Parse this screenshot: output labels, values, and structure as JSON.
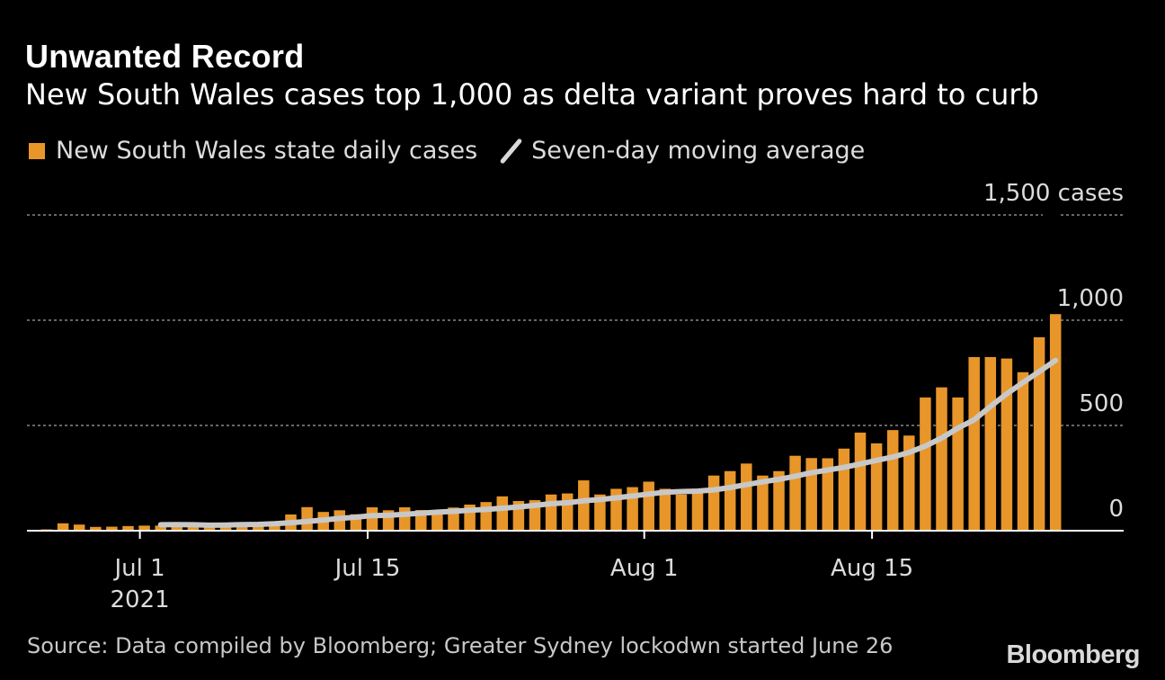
{
  "title": "Unwanted Record",
  "subtitle": "New South Wales cases top 1,000 as delta variant proves hard to curb",
  "legend": {
    "bars_label": "New South Wales state daily cases",
    "line_label": "Seven-day moving average"
  },
  "source": "Source: Data compiled by Bloomberg; Greater Sydney lockodwn started June 26",
  "brand": "Bloomberg",
  "colors": {
    "bar": "#e8962a",
    "line": "#c8c8c8",
    "background": "#000000",
    "grid": "#888888"
  },
  "chart_data": {
    "type": "bar",
    "ylim": [
      0,
      1500
    ],
    "y_ticks": [
      {
        "value": 0,
        "label": "0"
      },
      {
        "value": 500,
        "label": "500"
      },
      {
        "value": 1000,
        "label": "1,000"
      },
      {
        "value": 1500,
        "label": "1,500 cases"
      }
    ],
    "x_ticks": [
      {
        "index": 6,
        "label": "Jul 1",
        "sublabel": "2021"
      },
      {
        "index": 20,
        "label": "Jul 15"
      },
      {
        "index": 37,
        "label": "Aug 1"
      },
      {
        "index": 51,
        "label": "Aug 15"
      }
    ],
    "dates": [
      "Jun 25",
      "Jun 26",
      "Jun 27",
      "Jun 28",
      "Jun 29",
      "Jun 30",
      "Jul 1",
      "Jul 2",
      "Jul 3",
      "Jul 4",
      "Jul 5",
      "Jul 6",
      "Jul 7",
      "Jul 8",
      "Jul 9",
      "Jul 10",
      "Jul 11",
      "Jul 12",
      "Jul 13",
      "Jul 14",
      "Jul 15",
      "Jul 16",
      "Jul 17",
      "Jul 18",
      "Jul 19",
      "Jul 20",
      "Jul 21",
      "Jul 22",
      "Jul 23",
      "Jul 24",
      "Jul 25",
      "Jul 26",
      "Jul 27",
      "Jul 28",
      "Jul 29",
      "Jul 30",
      "Jul 31",
      "Aug 1",
      "Aug 2",
      "Aug 3",
      "Aug 4",
      "Aug 5",
      "Aug 6",
      "Aug 7",
      "Aug 8",
      "Aug 9",
      "Aug 10",
      "Aug 11",
      "Aug 12",
      "Aug 13",
      "Aug 14",
      "Aug 15",
      "Aug 16",
      "Aug 17",
      "Aug 18",
      "Aug 19",
      "Aug 20",
      "Aug 21",
      "Aug 22",
      "Aug 23",
      "Aug 24",
      "Aug 25",
      "Aug 26"
    ],
    "series": [
      {
        "name": "New South Wales state daily cases",
        "type": "bar",
        "values": [
          6,
          35,
          29,
          18,
          19,
          22,
          24,
          24,
          31,
          35,
          16,
          27,
          38,
          27,
          44,
          77,
          112,
          89,
          97,
          78,
          111,
          97,
          111,
          98,
          98,
          110,
          124,
          136,
          163,
          141,
          145,
          172,
          177,
          239,
          172,
          199,
          207,
          233,
          199,
          172,
          199,
          262,
          283,
          319,
          262,
          283,
          356,
          345,
          344,
          390,
          466,
          415,
          478,
          452,
          633,
          681,
          633,
          825,
          825,
          818,
          753,
          919,
          1029
        ]
      },
      {
        "name": "Seven-day moving average",
        "type": "line",
        "values": [
          null,
          null,
          null,
          null,
          null,
          null,
          null,
          28,
          29,
          28,
          26,
          27,
          29,
          30,
          33,
          38,
          44,
          51,
          58,
          64,
          72,
          73,
          78,
          83,
          88,
          92,
          97,
          101,
          107,
          113,
          120,
          128,
          133,
          142,
          148,
          156,
          165,
          174,
          183,
          186,
          188,
          194,
          205,
          219,
          232,
          244,
          259,
          275,
          288,
          301,
          317,
          334,
          350,
          372,
          402,
          440,
          487,
          527,
          590,
          650,
          704,
          756,
          809
        ]
      }
    ]
  }
}
